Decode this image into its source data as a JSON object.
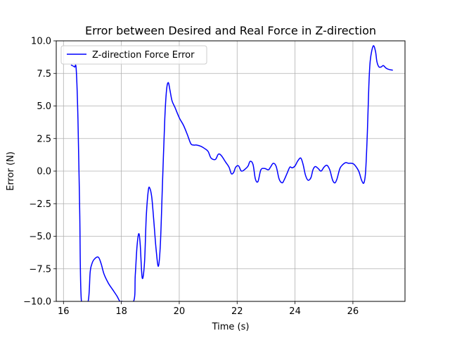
{
  "chart_data": {
    "type": "line",
    "title": "Error between Desired and Real Force in Z-direction",
    "xlabel": "Time (s)",
    "ylabel": "Error (N)",
    "xlim": [
      15.75,
      27.8
    ],
    "ylim": [
      -10,
      10
    ],
    "x_ticks": [
      16,
      18,
      20,
      22,
      24,
      26
    ],
    "x_tick_labels": [
      "16",
      "18",
      "20",
      "22",
      "24",
      "26"
    ],
    "y_ticks": [
      -10,
      -7.5,
      -5,
      -2.5,
      0,
      2.5,
      5,
      7.5,
      10
    ],
    "y_tick_labels": [
      "−10.0",
      "−7.5",
      "−5.0",
      "−2.5",
      "0.0",
      "2.5",
      "5.0",
      "7.5",
      "10.0"
    ],
    "grid": true,
    "legend_position": "upper-left",
    "series": [
      {
        "name": "Z-direction Force Error",
        "color": "#0000ff",
        "x": [
          16.26,
          16.38,
          16.44,
          16.5,
          16.56,
          16.62,
          16.85,
          16.92,
          16.97,
          17.05,
          17.2,
          17.3,
          17.4,
          17.55,
          17.7,
          17.85,
          17.95,
          18.03,
          18.42,
          18.48,
          18.54,
          18.6,
          18.65,
          18.72,
          18.8,
          18.86,
          18.93,
          18.98,
          19.05,
          19.12,
          19.2,
          19.28,
          19.35,
          19.42,
          19.5,
          19.56,
          19.62,
          19.68,
          19.75,
          19.85,
          20.0,
          20.15,
          20.28,
          20.4,
          20.5,
          20.6,
          20.75,
          20.9,
          21.0,
          21.1,
          21.25,
          21.35,
          21.45,
          21.6,
          21.72,
          21.8,
          21.88,
          21.95,
          22.05,
          22.15,
          22.3,
          22.38,
          22.45,
          22.55,
          22.63,
          22.72,
          22.82,
          22.95,
          23.08,
          23.15,
          23.25,
          23.35,
          23.45,
          23.55,
          23.62,
          23.72,
          23.82,
          23.9,
          24.0,
          24.1,
          24.2,
          24.28,
          24.36,
          24.45,
          24.55,
          24.62,
          24.7,
          24.8,
          24.9,
          25.0,
          25.1,
          25.2,
          25.3,
          25.38,
          25.45,
          25.55,
          25.65,
          25.75,
          25.85,
          25.95,
          26.05,
          26.2,
          26.3,
          26.38,
          26.44,
          26.5,
          26.55,
          26.6,
          26.7,
          26.78,
          26.83,
          26.9,
          26.98,
          27.05,
          27.15,
          27.25,
          27.38
        ],
        "y": [
          8.15,
          8.0,
          7.8,
          4.0,
          -3.0,
          -10.0,
          -10.0,
          -7.8,
          -7.2,
          -6.8,
          -6.6,
          -7.1,
          -7.9,
          -8.6,
          -9.1,
          -9.6,
          -10.0,
          -10.0,
          -10.0,
          -8.0,
          -5.8,
          -4.8,
          -5.6,
          -8.2,
          -7.0,
          -3.5,
          -1.5,
          -1.3,
          -2.0,
          -3.8,
          -6.0,
          -7.3,
          -5.5,
          -1.0,
          4.0,
          6.2,
          6.8,
          6.2,
          5.4,
          4.9,
          4.1,
          3.5,
          2.8,
          2.1,
          2.0,
          2.0,
          1.9,
          1.7,
          1.5,
          1.0,
          0.9,
          1.3,
          1.2,
          0.7,
          0.3,
          -0.2,
          -0.1,
          0.3,
          0.4,
          0.0,
          0.2,
          0.4,
          0.75,
          0.5,
          -0.6,
          -0.8,
          0.1,
          0.2,
          0.1,
          0.3,
          0.6,
          0.35,
          -0.6,
          -0.9,
          -0.7,
          -0.2,
          0.3,
          0.25,
          0.4,
          0.8,
          1.0,
          0.5,
          -0.3,
          -0.7,
          -0.5,
          0.1,
          0.35,
          0.2,
          0.0,
          0.3,
          0.45,
          0.1,
          -0.7,
          -0.9,
          -0.6,
          0.2,
          0.5,
          0.65,
          0.6,
          0.6,
          0.5,
          0.0,
          -0.7,
          -0.9,
          0.0,
          3.0,
          6.5,
          8.5,
          9.6,
          9.2,
          8.4,
          8.0,
          8.0,
          8.1,
          7.9,
          7.8,
          7.75
        ]
      }
    ]
  }
}
